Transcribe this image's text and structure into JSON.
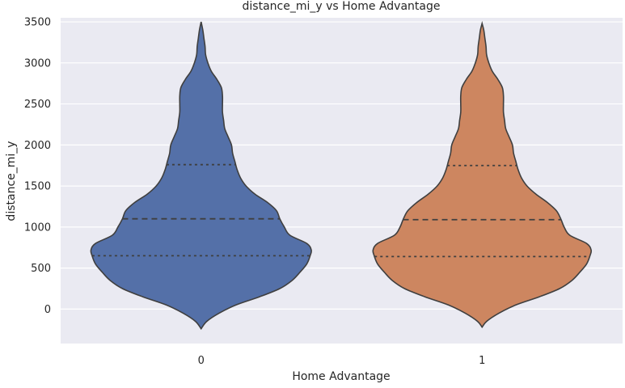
{
  "chart_data": {
    "type": "violin",
    "title": "distance_mi_y vs Home Advantage",
    "xlabel": "Home Advantage",
    "ylabel": "distance_mi_y",
    "categories": [
      "0",
      "1"
    ],
    "ylim": [
      -420,
      3550
    ],
    "yticks": [
      0,
      500,
      1000,
      1500,
      2000,
      2500,
      3000,
      3500
    ],
    "ytick_labels": [
      "0",
      "500",
      "1000",
      "1500",
      "2000",
      "2500",
      "3000",
      "3500"
    ],
    "grid": true,
    "inner": "quartile",
    "colors": [
      "#5470a8",
      "#cd8660"
    ],
    "series": [
      {
        "category": "0",
        "min": -240,
        "max": 3500,
        "q1": 650,
        "median": 1100,
        "q3": 1760,
        "density_profile": [
          [
            -240,
            0.0
          ],
          [
            -150,
            0.05
          ],
          [
            -50,
            0.16
          ],
          [
            50,
            0.31
          ],
          [
            150,
            0.52
          ],
          [
            250,
            0.7
          ],
          [
            350,
            0.81
          ],
          [
            450,
            0.88
          ],
          [
            550,
            0.94
          ],
          [
            650,
            0.97
          ],
          [
            720,
            0.98
          ],
          [
            800,
            0.94
          ],
          [
            900,
            0.79
          ],
          [
            1000,
            0.74
          ],
          [
            1100,
            0.7
          ],
          [
            1200,
            0.67
          ],
          [
            1300,
            0.59
          ],
          [
            1400,
            0.48
          ],
          [
            1500,
            0.4
          ],
          [
            1600,
            0.35
          ],
          [
            1700,
            0.32
          ],
          [
            1800,
            0.3
          ],
          [
            1900,
            0.28
          ],
          [
            2000,
            0.27
          ],
          [
            2100,
            0.24
          ],
          [
            2200,
            0.21
          ],
          [
            2300,
            0.2
          ],
          [
            2400,
            0.19
          ],
          [
            2500,
            0.19
          ],
          [
            2600,
            0.19
          ],
          [
            2700,
            0.18
          ],
          [
            2800,
            0.14
          ],
          [
            2900,
            0.09
          ],
          [
            3000,
            0.06
          ],
          [
            3100,
            0.04
          ],
          [
            3200,
            0.035
          ],
          [
            3300,
            0.025
          ],
          [
            3400,
            0.015
          ],
          [
            3500,
            0.0
          ]
        ]
      },
      {
        "category": "1",
        "min": -220,
        "max": 3480,
        "q1": 640,
        "median": 1090,
        "q3": 1750,
        "density_profile": [
          [
            -220,
            0.0
          ],
          [
            -150,
            0.04
          ],
          [
            -50,
            0.15
          ],
          [
            50,
            0.3
          ],
          [
            150,
            0.51
          ],
          [
            250,
            0.69
          ],
          [
            350,
            0.8
          ],
          [
            450,
            0.87
          ],
          [
            550,
            0.93
          ],
          [
            650,
            0.96
          ],
          [
            720,
            0.97
          ],
          [
            800,
            0.93
          ],
          [
            900,
            0.78
          ],
          [
            1000,
            0.73
          ],
          [
            1100,
            0.7
          ],
          [
            1200,
            0.66
          ],
          [
            1300,
            0.58
          ],
          [
            1400,
            0.48
          ],
          [
            1500,
            0.4
          ],
          [
            1600,
            0.35
          ],
          [
            1700,
            0.32
          ],
          [
            1800,
            0.3
          ],
          [
            1900,
            0.28
          ],
          [
            2000,
            0.27
          ],
          [
            2100,
            0.24
          ],
          [
            2200,
            0.21
          ],
          [
            2300,
            0.2
          ],
          [
            2400,
            0.19
          ],
          [
            2500,
            0.19
          ],
          [
            2600,
            0.19
          ],
          [
            2700,
            0.18
          ],
          [
            2800,
            0.14
          ],
          [
            2900,
            0.09
          ],
          [
            3000,
            0.06
          ],
          [
            3100,
            0.04
          ],
          [
            3200,
            0.035
          ],
          [
            3300,
            0.025
          ],
          [
            3400,
            0.015
          ],
          [
            3480,
            0.0
          ]
        ]
      }
    ]
  }
}
